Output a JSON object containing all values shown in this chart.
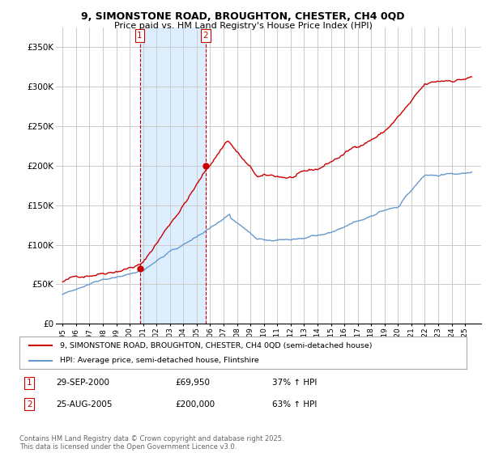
{
  "title": "9, SIMONSTONE ROAD, BROUGHTON, CHESTER, CH4 0QD",
  "subtitle": "Price paid vs. HM Land Registry's House Price Index (HPI)",
  "legend_line1": "9, SIMONSTONE ROAD, BROUGHTON, CHESTER, CH4 0QD (semi-detached house)",
  "legend_line2": "HPI: Average price, semi-detached house, Flintshire",
  "footer": "Contains HM Land Registry data © Crown copyright and database right 2025.\nThis data is licensed under the Open Government Licence v3.0.",
  "sale1_label": "1",
  "sale1_date": "29-SEP-2000",
  "sale1_price": "£69,950",
  "sale1_hpi": "37% ↑ HPI",
  "sale2_label": "2",
  "sale2_date": "25-AUG-2005",
  "sale2_price": "£200,000",
  "sale2_hpi": "63% ↑ HPI",
  "red_color": "#cc0000",
  "blue_color": "#6699cc",
  "shade_color": "#ddeeff",
  "background_color": "#ffffff",
  "grid_color": "#cccccc",
  "sale1_x": 2000.75,
  "sale1_y": 69950,
  "sale2_x": 2005.65,
  "sale2_y": 200000,
  "ylim": [
    0,
    375000
  ],
  "xlim": [
    1994.5,
    2026.2
  ],
  "yticks": [
    0,
    50000,
    100000,
    150000,
    200000,
    250000,
    300000,
    350000
  ],
  "ytick_labels": [
    "£0",
    "£50K",
    "£100K",
    "£150K",
    "£200K",
    "£250K",
    "£300K",
    "£350K"
  ],
  "xticks": [
    1995,
    1996,
    1997,
    1998,
    1999,
    2000,
    2001,
    2002,
    2003,
    2004,
    2005,
    2006,
    2007,
    2008,
    2009,
    2010,
    2011,
    2012,
    2013,
    2014,
    2015,
    2016,
    2017,
    2018,
    2019,
    2020,
    2021,
    2022,
    2023,
    2024,
    2025
  ]
}
